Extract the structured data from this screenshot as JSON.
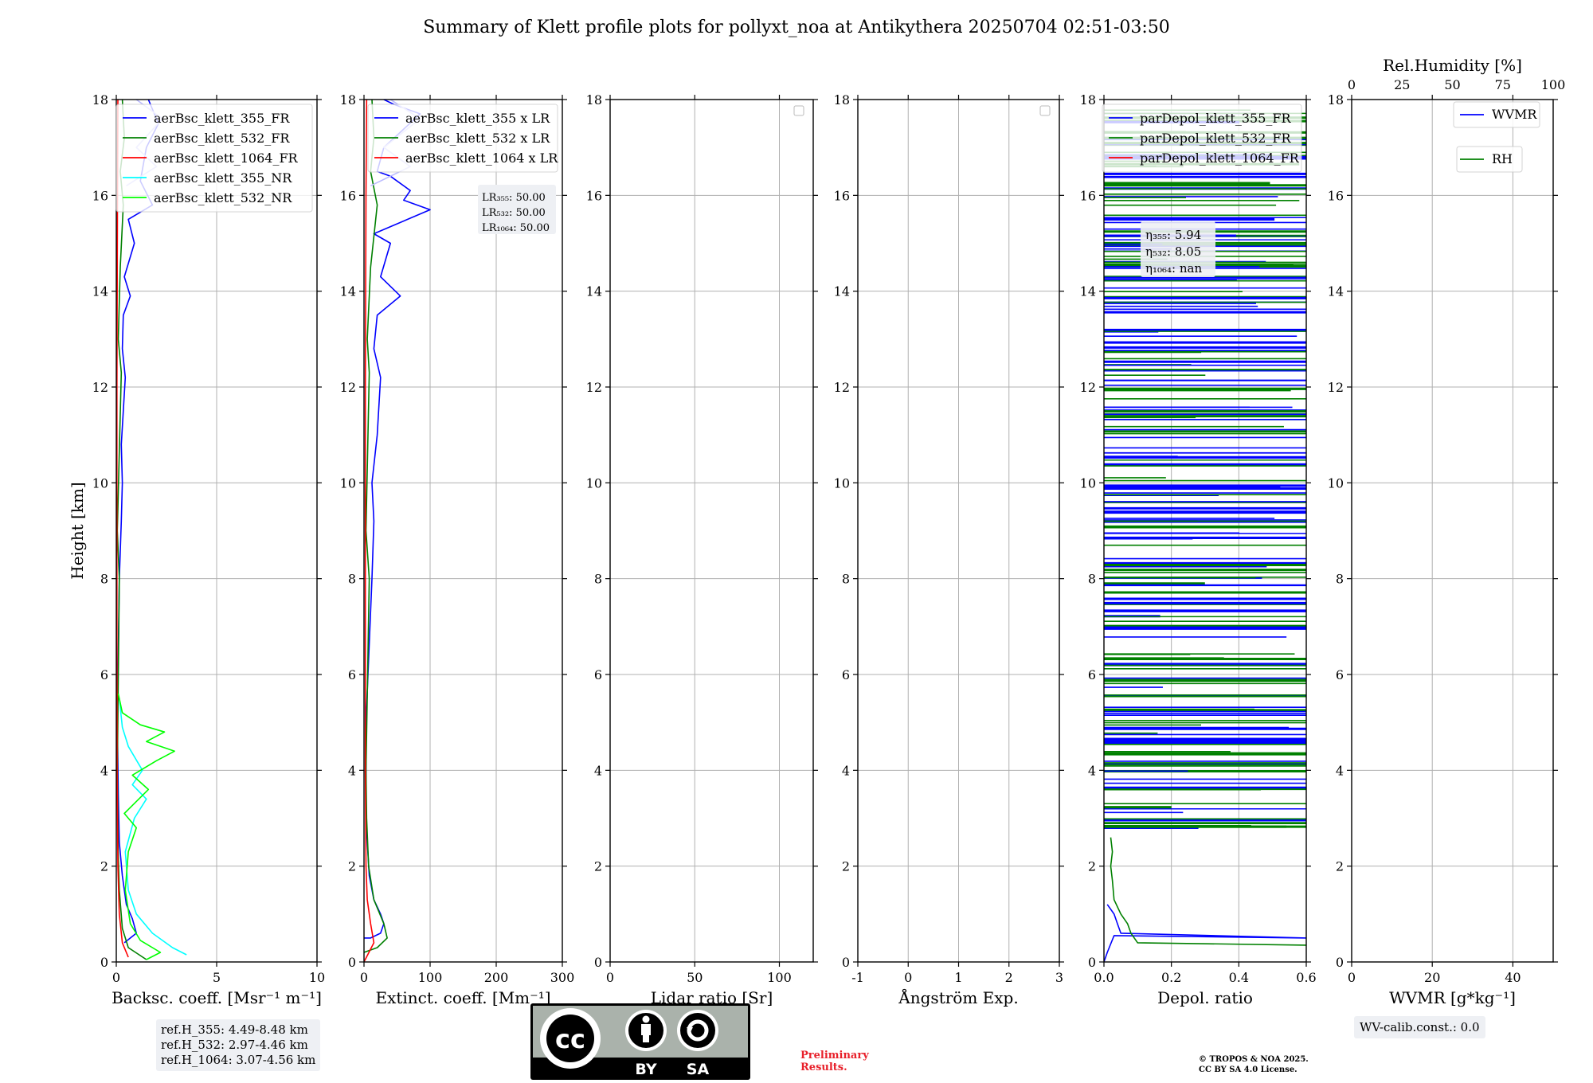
{
  "title": "Summary of Klett profile plots for pollyxt_noa at Antikythera 20250704 02:51-03:50",
  "chart_data": [
    {
      "type": "line",
      "id": "backscatter",
      "xlabel": "Backsc. coeff. [Msr⁻¹ m⁻¹]",
      "ylabel": "Height [km]",
      "xlim": [
        0,
        10
      ],
      "ylim": [
        0,
        18
      ],
      "xticks": [
        0,
        5,
        10
      ],
      "yticks": [
        0,
        2,
        4,
        6,
        8,
        10,
        12,
        14,
        16,
        18
      ],
      "grid": true,
      "legend_position": "top-right",
      "series": [
        {
          "name": "aerBsc_klett_355_FR",
          "color": "#0000ff",
          "points": [
            [
              0.4,
              0.4
            ],
            [
              1.0,
              0.6
            ],
            [
              0.8,
              0.9
            ],
            [
              0.5,
              1.2
            ],
            [
              0.3,
              1.8
            ],
            [
              0.15,
              2.5
            ],
            [
              0.1,
              3.5
            ],
            [
              0.05,
              5.0
            ],
            [
              0.15,
              8.0
            ],
            [
              0.25,
              9.2
            ],
            [
              0.3,
              10.0
            ],
            [
              0.25,
              10.8
            ],
            [
              0.45,
              12.2
            ],
            [
              0.3,
              12.8
            ],
            [
              0.35,
              13.5
            ],
            [
              0.7,
              13.9
            ],
            [
              0.4,
              14.3
            ],
            [
              0.9,
              15.0
            ],
            [
              0.6,
              15.5
            ],
            [
              1.8,
              15.8
            ],
            [
              1.2,
              16.3
            ],
            [
              1.5,
              17.0
            ],
            [
              2.1,
              17.5
            ],
            [
              1.6,
              18.0
            ]
          ]
        },
        {
          "name": "aerBsc_klett_532_FR",
          "color": "#008000",
          "points": [
            [
              1.5,
              0.05
            ],
            [
              0.6,
              0.3
            ],
            [
              0.3,
              0.7
            ],
            [
              0.15,
              1.5
            ],
            [
              0.1,
              2.2
            ],
            [
              0.05,
              4.0
            ],
            [
              0.15,
              8.0
            ],
            [
              0.05,
              9.0
            ],
            [
              0.25,
              12.3
            ],
            [
              0.1,
              13.0
            ],
            [
              0.2,
              14.5
            ],
            [
              0.35,
              15.8
            ],
            [
              0.2,
              16.5
            ],
            [
              0.4,
              17.2
            ],
            [
              0.3,
              18.0
            ]
          ]
        },
        {
          "name": "aerBsc_klett_1064_FR",
          "color": "#ff0000",
          "points": [
            [
              0.6,
              0.1
            ],
            [
              0.3,
              0.4
            ],
            [
              0.15,
              1.0
            ],
            [
              0.08,
              2.0
            ],
            [
              0.04,
              4.0
            ],
            [
              0.03,
              8.0
            ],
            [
              0.03,
              12.0
            ],
            [
              0.06,
              16.0
            ],
            [
              0.08,
              18.0
            ]
          ]
        },
        {
          "name": "aerBsc_klett_355_NR",
          "color": "#00ffff",
          "points": [
            [
              3.5,
              0.15
            ],
            [
              2.8,
              0.3
            ],
            [
              1.8,
              0.6
            ],
            [
              1.0,
              1.0
            ],
            [
              0.6,
              1.5
            ],
            [
              0.45,
              2.3
            ],
            [
              0.9,
              3.0
            ],
            [
              1.5,
              3.4
            ],
            [
              0.8,
              3.7
            ],
            [
              1.3,
              4.0
            ],
            [
              0.6,
              4.5
            ],
            [
              0.3,
              4.9
            ],
            [
              0.15,
              5.5
            ]
          ]
        },
        {
          "name": "aerBsc_klett_532_NR",
          "color": "#00ff00",
          "points": [
            [
              1.5,
              0.05
            ],
            [
              2.2,
              0.2
            ],
            [
              1.2,
              0.45
            ],
            [
              0.7,
              0.8
            ],
            [
              0.45,
              1.5
            ],
            [
              0.6,
              2.3
            ],
            [
              1.0,
              2.8
            ],
            [
              0.4,
              3.1
            ],
            [
              1.6,
              3.6
            ],
            [
              0.8,
              3.9
            ],
            [
              2.0,
              4.2
            ],
            [
              2.9,
              4.4
            ],
            [
              1.5,
              4.6
            ],
            [
              2.4,
              4.8
            ],
            [
              1.2,
              4.95
            ],
            [
              0.3,
              5.2
            ],
            [
              0.1,
              5.6
            ]
          ]
        },
        {
          "name": "",
          "color": "#bbbbff",
          "points": [
            [
              0.5,
              16.2
            ],
            [
              2.0,
              16.6
            ],
            [
              1.0,
              17.0
            ],
            [
              2.3,
              17.6
            ],
            [
              1.0,
              18.0
            ]
          ]
        }
      ]
    },
    {
      "type": "line",
      "id": "extinction",
      "xlabel": "Extinct. coeff. [Mm⁻¹]",
      "xlim": [
        0,
        300
      ],
      "ylim": [
        0,
        18
      ],
      "xticks": [
        0,
        100,
        200,
        300
      ],
      "yticks": [
        0,
        2,
        4,
        6,
        8,
        10,
        12,
        14,
        16,
        18
      ],
      "grid": true,
      "legend_position": "top-right",
      "lr_annotation": [
        "LR₃₅₅: 50.00",
        "LR₅₃₂: 50.00",
        "LR₁₀₆₄: 50.00"
      ],
      "series": [
        {
          "name": "aerBsc_klett_355 x LR",
          "color": "#0000ff",
          "points": [
            [
              0,
              0.5
            ],
            [
              10,
              0.5
            ],
            [
              25,
              0.6
            ],
            [
              30,
              0.8
            ],
            [
              25,
              1.0
            ],
            [
              15,
              1.3
            ],
            [
              8,
              1.8
            ],
            [
              5,
              2.5
            ],
            [
              3,
              3.0
            ],
            [
              3,
              5.0
            ],
            [
              12,
              8.0
            ],
            [
              15,
              9.2
            ],
            [
              12,
              10.0
            ],
            [
              20,
              11.0
            ],
            [
              25,
              12.2
            ],
            [
              15,
              12.8
            ],
            [
              20,
              13.5
            ],
            [
              55,
              13.9
            ],
            [
              25,
              14.3
            ],
            [
              40,
              15.0
            ],
            [
              15,
              15.2
            ],
            [
              100,
              15.7
            ],
            [
              60,
              15.9
            ],
            [
              70,
              16.1
            ],
            [
              40,
              16.4
            ],
            [
              20,
              16.5
            ],
            [
              30,
              17.0
            ],
            [
              85,
              17.7
            ],
            [
              45,
              17.9
            ],
            [
              30,
              18.0
            ]
          ]
        },
        {
          "name": "aerBsc_klett_532 x LR",
          "color": "#008000",
          "points": [
            [
              0,
              0.2
            ],
            [
              20,
              0.3
            ],
            [
              35,
              0.5
            ],
            [
              30,
              0.8
            ],
            [
              15,
              1.3
            ],
            [
              7,
              2.0
            ],
            [
              4,
              3.0
            ],
            [
              3,
              4.0
            ],
            [
              8,
              8.0
            ],
            [
              3,
              9.0
            ],
            [
              8,
              12.3
            ],
            [
              5,
              13.0
            ],
            [
              10,
              14.5
            ],
            [
              20,
              15.8
            ],
            [
              10,
              16.5
            ],
            [
              15,
              17.2
            ],
            [
              12,
              18.0
            ]
          ]
        },
        {
          "name": "aerBsc_klett_1064 x LR",
          "color": "#ff0000",
          "points": [
            [
              0,
              0
            ],
            [
              15,
              0.4
            ],
            [
              10,
              0.8
            ],
            [
              5,
              1.3
            ],
            [
              3,
              2.0
            ],
            [
              2,
              4.0
            ],
            [
              2,
              8.0
            ],
            [
              2,
              12.0
            ],
            [
              3,
              16.0
            ],
            [
              4,
              18.0
            ]
          ]
        },
        {
          "name": "",
          "color": "#bbbbff",
          "points": [
            [
              10,
              16.2
            ],
            [
              70,
              16.6
            ],
            [
              30,
              17.0
            ],
            [
              85,
              17.6
            ],
            [
              40,
              18.0
            ]
          ]
        }
      ]
    },
    {
      "type": "line",
      "id": "lidar_ratio",
      "xlabel": "Lidar ratio [Sr]",
      "xlim": [
        0,
        120
      ],
      "ylim": [
        0,
        18
      ],
      "xticks": [
        0,
        50,
        100
      ],
      "yticks": [
        0,
        2,
        4,
        6,
        8,
        10,
        12,
        14,
        16,
        18
      ],
      "grid": true,
      "legend_position": "top-right",
      "series": []
    },
    {
      "type": "line",
      "id": "angstrom",
      "xlabel": "Ångström Exp.",
      "xlim": [
        -1,
        3
      ],
      "ylim": [
        0,
        18
      ],
      "xticks": [
        -1,
        0,
        1,
        2,
        3
      ],
      "yticks": [
        0,
        2,
        4,
        6,
        8,
        10,
        12,
        14,
        16,
        18
      ],
      "grid": true,
      "legend_position": "top-right",
      "series": []
    },
    {
      "type": "line",
      "id": "depol",
      "xlabel": "Depol. ratio",
      "xlim": [
        0,
        0.6
      ],
      "ylim": [
        0,
        18
      ],
      "xticks": [
        0.0,
        0.2,
        0.4,
        0.6
      ],
      "yticks": [
        0,
        2,
        4,
        6,
        8,
        10,
        12,
        14,
        16,
        18
      ],
      "grid": true,
      "legend_position": "top-right",
      "eta_annotation": [
        "η₃₅₅: 5.94",
        "η₅₃₂: 8.05",
        "η₁₀₆₄: nan"
      ],
      "series": [
        {
          "name": "parDepol_klett_355_FR",
          "color": "#0000ff",
          "points": [
            [
              0.0,
              0.0
            ],
            [
              0.01,
              0.2
            ],
            [
              0.03,
              0.55
            ],
            [
              0.6,
              0.5
            ],
            [
              0.05,
              0.6
            ],
            [
              0.04,
              0.8
            ],
            [
              0.03,
              1.0
            ],
            [
              0.01,
              1.2
            ]
          ]
        },
        {
          "name": "parDepol_klett_532_FR",
          "color": "#008000",
          "points": [
            [
              0.6,
              0.35
            ],
            [
              0.1,
              0.4
            ],
            [
              0.08,
              0.6
            ],
            [
              0.07,
              0.8
            ],
            [
              0.05,
              1.0
            ],
            [
              0.03,
              1.3
            ],
            [
              0.025,
              1.7
            ],
            [
              0.02,
              2.0
            ],
            [
              0.025,
              2.3
            ],
            [
              0.02,
              2.6
            ]
          ]
        },
        {
          "name": "parDepol_klett_1064_FR",
          "color": "#ff0000",
          "points": []
        }
      ],
      "noisy_region": {
        "from_km": 2.8,
        "to_km": 18.0,
        "note": "dense horizontal noise lines spanning full axis"
      }
    },
    {
      "type": "line",
      "id": "wvmr",
      "xlabel": "WVMR [g*kg⁻¹]",
      "top_label": "Rel.Humidity [%]",
      "xlim": [
        0,
        50
      ],
      "top_xlim": [
        0,
        100
      ],
      "ylim": [
        0,
        18
      ],
      "xticks": [
        0,
        20,
        40
      ],
      "top_xticks": [
        0,
        25,
        50,
        75,
        100
      ],
      "yticks": [
        0,
        2,
        4,
        6,
        8,
        10,
        12,
        14,
        16,
        18
      ],
      "grid": true,
      "legend_position": "top-right",
      "series": [
        {
          "name": "WVMR",
          "color": "#0000ff",
          "points": []
        },
        {
          "name": "RH",
          "color": "#008000",
          "points": []
        }
      ]
    }
  ],
  "ref_heights": [
    "ref.H_355: 4.49-8.48 km",
    "ref.H_532: 2.97-4.46 km",
    "ref.H_1064: 3.07-4.56 km"
  ],
  "wv_calib": "WV-calib.const.: 0.0",
  "preliminary": [
    "Preliminary",
    "Results."
  ],
  "copyright": [
    "© TROPOS & NOA 2025.",
    "CC BY SA 4.0 License."
  ],
  "cc_badge": {
    "cc": "cc",
    "by": "BY",
    "sa": "SA"
  },
  "colors": {
    "grid": "#b0b0b0",
    "annotation_bg": "#eef0f4",
    "prelim": "#e8202a"
  }
}
